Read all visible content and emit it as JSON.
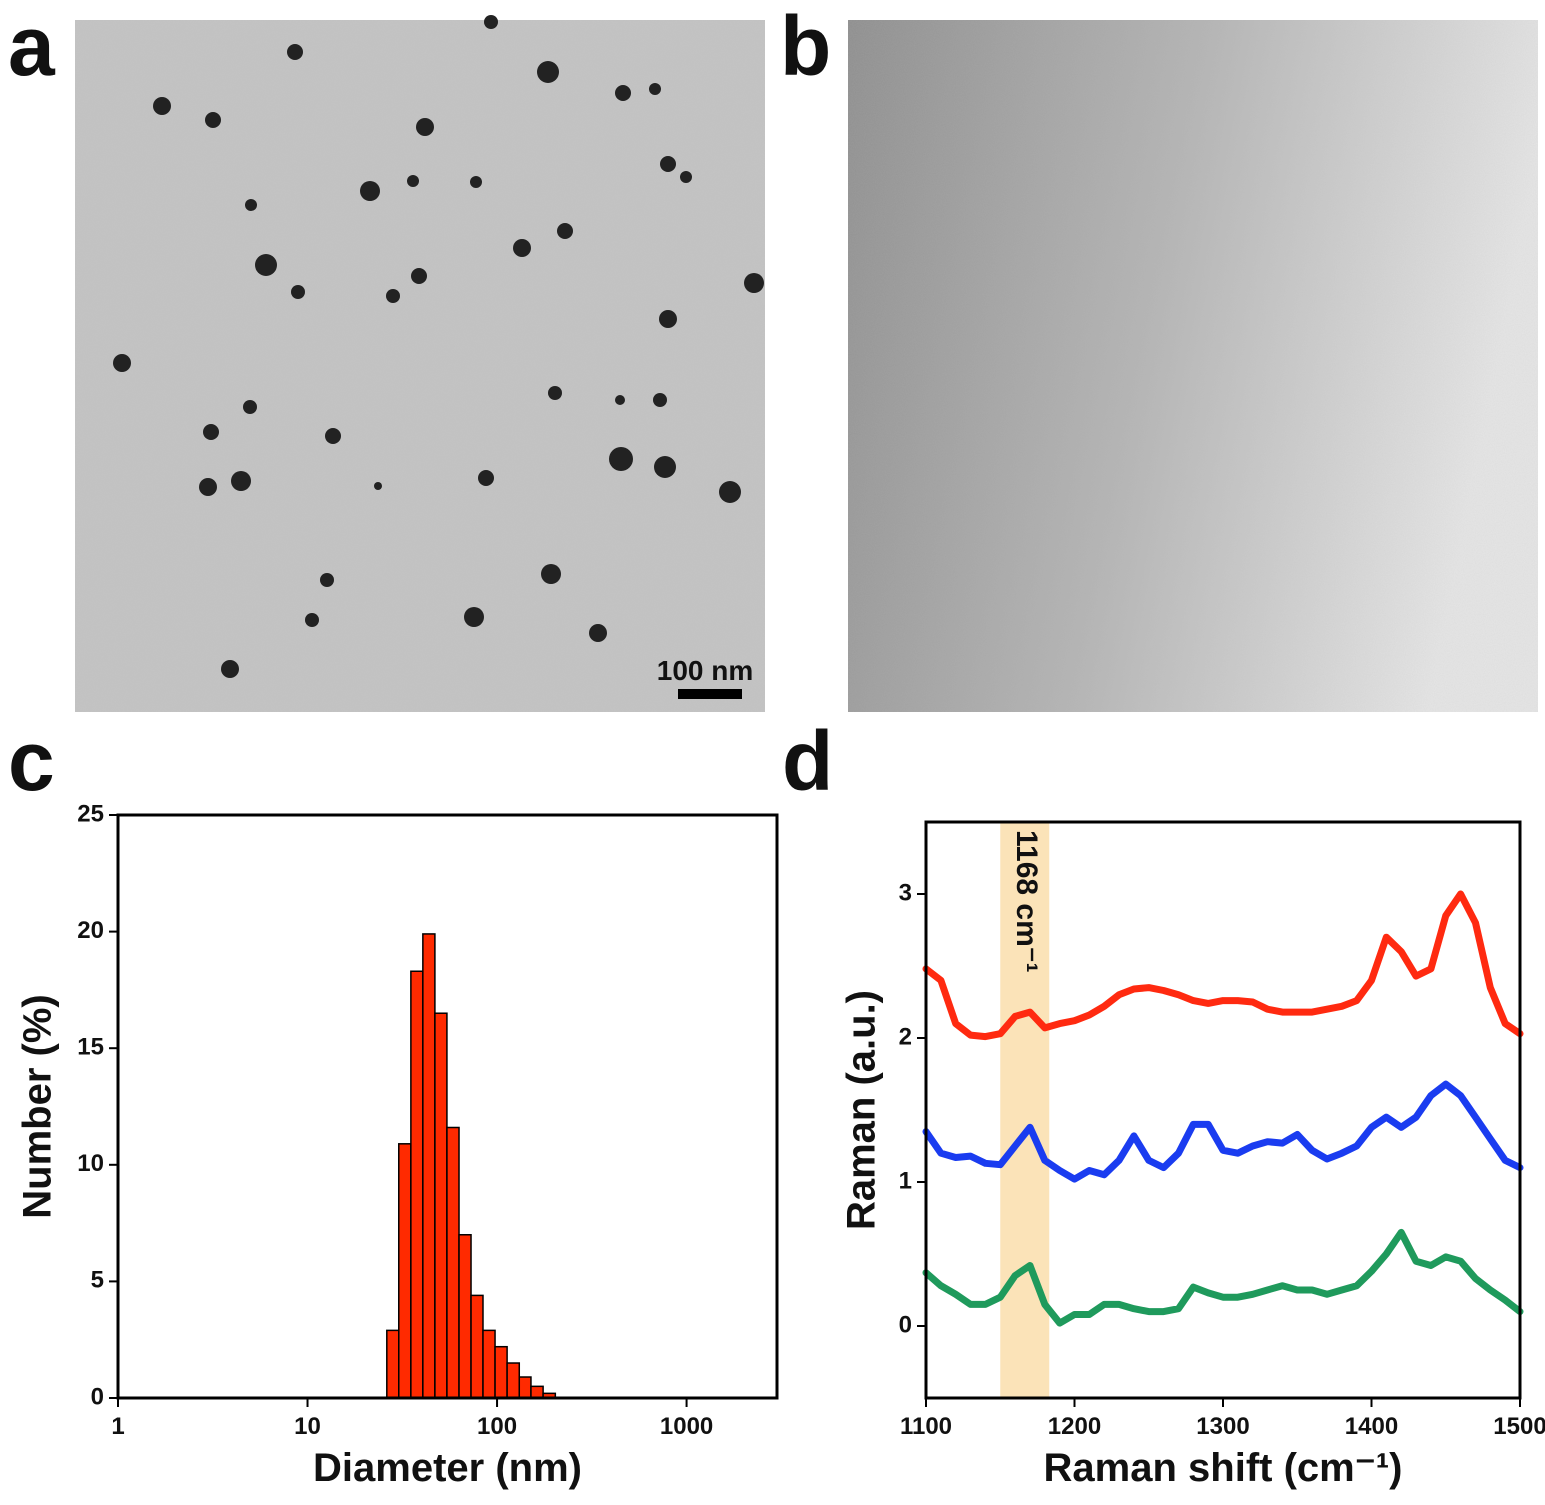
{
  "panel_labels": [
    "a",
    "b",
    "c",
    "d"
  ],
  "scale_bar": "100 nm",
  "chart_data": [
    {
      "type": "histogram",
      "xlabel": "Diameter (nm)",
      "ylabel": "Number (%)",
      "xscale": "log",
      "xlim": [
        1,
        3000
      ],
      "xticks": [
        1,
        10,
        100,
        1000
      ],
      "ylim": [
        0,
        25
      ],
      "yticks": [
        0,
        5,
        10,
        15,
        20,
        25
      ],
      "color": "#ff2a00",
      "bins": [
        26.2,
        30.3,
        35.1,
        40.6,
        47.0,
        54.4,
        63.0,
        72.9,
        84.3,
        97.6,
        113,
        131,
        151,
        175,
        203
      ],
      "values": [
        2.9,
        10.9,
        18.3,
        19.9,
        16.5,
        11.6,
        7.0,
        4.4,
        2.9,
        2.2,
        1.5,
        0.9,
        0.5,
        0.2
      ]
    },
    {
      "type": "line",
      "xlabel": "Raman shift (cm⁻¹)",
      "ylabel": "Raman (a.u.)",
      "xlim": [
        1100,
        1500
      ],
      "xticks": [
        1100,
        1200,
        1300,
        1400,
        1500
      ],
      "ylim": [
        -0.5,
        3.5
      ],
      "yticks": [
        0,
        1,
        2,
        3
      ],
      "highlight": [
        1150,
        1183
      ],
      "highlight_color": "#fbe3b8",
      "annotation": "1168 cm⁻¹",
      "x": [
        1100,
        1110,
        1120,
        1130,
        1140,
        1150,
        1160,
        1170,
        1180,
        1190,
        1200,
        1210,
        1220,
        1230,
        1240,
        1250,
        1260,
        1270,
        1280,
        1290,
        1300,
        1310,
        1320,
        1330,
        1340,
        1350,
        1360,
        1370,
        1380,
        1390,
        1400,
        1410,
        1420,
        1430,
        1440,
        1450,
        1460,
        1470,
        1480,
        1490,
        1500
      ],
      "series": [
        {
          "color": "#ff2a10",
          "values": [
            2.48,
            2.4,
            2.1,
            2.02,
            2.01,
            2.03,
            2.15,
            2.18,
            2.07,
            2.1,
            2.12,
            2.16,
            2.22,
            2.3,
            2.34,
            2.35,
            2.33,
            2.3,
            2.26,
            2.24,
            2.26,
            2.26,
            2.25,
            2.2,
            2.18,
            2.18,
            2.18,
            2.2,
            2.22,
            2.26,
            2.4,
            2.7,
            2.6,
            2.43,
            2.48,
            2.85,
            3.0,
            2.8,
            2.35,
            2.1,
            2.03
          ]
        },
        {
          "color": "#1a3cf0",
          "values": [
            1.35,
            1.2,
            1.17,
            1.18,
            1.13,
            1.12,
            1.25,
            1.38,
            1.15,
            1.08,
            1.02,
            1.08,
            1.05,
            1.15,
            1.32,
            1.15,
            1.1,
            1.2,
            1.4,
            1.4,
            1.22,
            1.2,
            1.25,
            1.28,
            1.27,
            1.33,
            1.22,
            1.16,
            1.2,
            1.25,
            1.38,
            1.45,
            1.38,
            1.45,
            1.6,
            1.68,
            1.6,
            1.45,
            1.3,
            1.15,
            1.1
          ]
        },
        {
          "color": "#1f9a5c",
          "values": [
            0.37,
            0.28,
            0.22,
            0.15,
            0.15,
            0.2,
            0.35,
            0.42,
            0.15,
            0.02,
            0.08,
            0.08,
            0.15,
            0.15,
            0.12,
            0.1,
            0.1,
            0.12,
            0.27,
            0.23,
            0.2,
            0.2,
            0.22,
            0.25,
            0.28,
            0.25,
            0.25,
            0.22,
            0.25,
            0.28,
            0.38,
            0.5,
            0.65,
            0.45,
            0.42,
            0.48,
            0.45,
            0.33,
            0.25,
            0.18,
            0.1
          ]
        }
      ]
    }
  ]
}
